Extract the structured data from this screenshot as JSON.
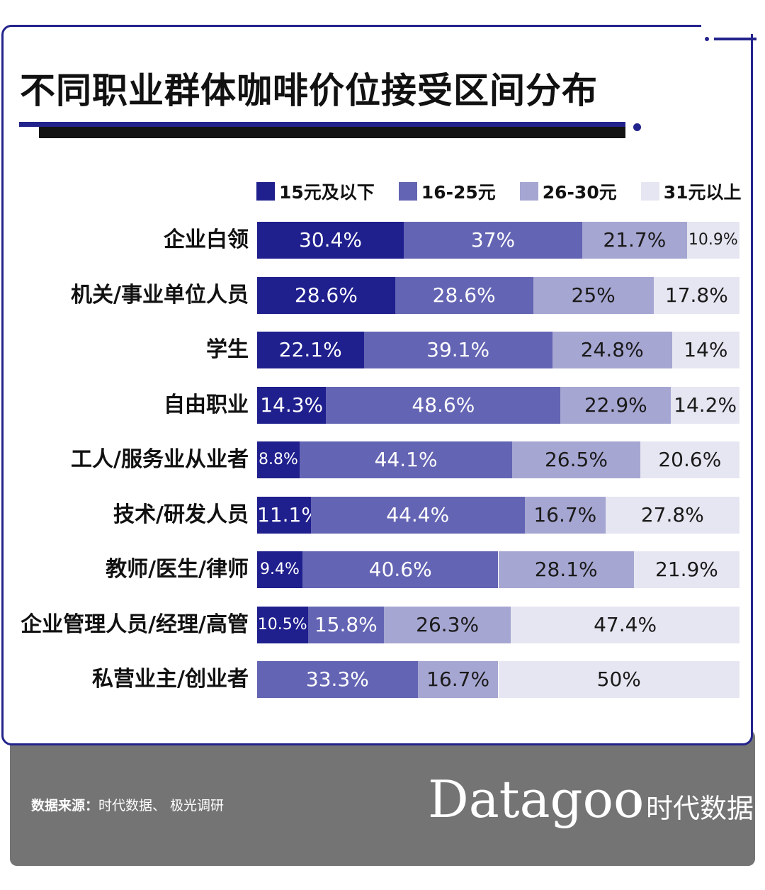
{
  "title": "不同职业群体咖啡价位接受区间分布",
  "colors": {
    "accent": "#23238c",
    "series": [
      "#1f1f8e",
      "#6464b4",
      "#a6a6d2",
      "#e6e6f2"
    ],
    "label_dark_bg": "#ffffff",
    "label_light_bg": "#1a1a1a",
    "footer": "#747474"
  },
  "legend": [
    {
      "label": "15元及以下"
    },
    {
      "label": "16-25元"
    },
    {
      "label": "26-30元"
    },
    {
      "label": "31元以上"
    }
  ],
  "chart_data": {
    "type": "bar",
    "orientation": "horizontal",
    "stacked": true,
    "categories": [
      "企业白领",
      "机关/事业单位人员",
      "学生",
      "自由职业",
      "工人/服务业从业者",
      "技术/研发人员",
      "教师/医生/律师",
      "企业管理人员/经理/高管",
      "私营业主/创业者"
    ],
    "series": [
      {
        "name": "15元及以下",
        "values": [
          30.4,
          28.6,
          22.1,
          14.3,
          8.8,
          11.1,
          9.4,
          10.5,
          0
        ],
        "labels": [
          "30.4%",
          "28.6%",
          "22.1%",
          "14.3%",
          "8.8%",
          "11.1%",
          "9.4%",
          "10.5%",
          ""
        ]
      },
      {
        "name": "16-25元",
        "values": [
          37,
          28.6,
          39.1,
          48.6,
          44.1,
          44.4,
          40.6,
          15.8,
          33.3
        ],
        "labels": [
          "37%",
          "28.6%",
          "39.1%",
          "48.6%",
          "44.1%",
          "44.4%",
          "40.6%",
          "15.8%",
          "33.3%"
        ]
      },
      {
        "name": "26-30元",
        "values": [
          21.7,
          25,
          24.8,
          22.9,
          26.5,
          16.7,
          28.1,
          26.3,
          16.7
        ],
        "labels": [
          "21.7%",
          "25%",
          "24.8%",
          "22.9%",
          "26.5%",
          "16.7%",
          "28.1%",
          "26.3%",
          "16.7%"
        ]
      },
      {
        "name": "31元以上",
        "values": [
          10.9,
          17.8,
          14,
          14.2,
          20.6,
          27.8,
          21.9,
          47.4,
          50
        ],
        "labels": [
          "10.9%",
          "17.8%",
          "14%",
          "14.2%",
          "20.6%",
          "27.8%",
          "21.9%",
          "47.4%",
          "50%"
        ]
      }
    ],
    "xlim": [
      0,
      100
    ],
    "legend_position": "top",
    "grid": false
  },
  "footer": {
    "source_label": "数据来源：",
    "source_text": "时代数据、 极光调研",
    "brand": "Datagoo",
    "brand_cn": "时代数据"
  }
}
